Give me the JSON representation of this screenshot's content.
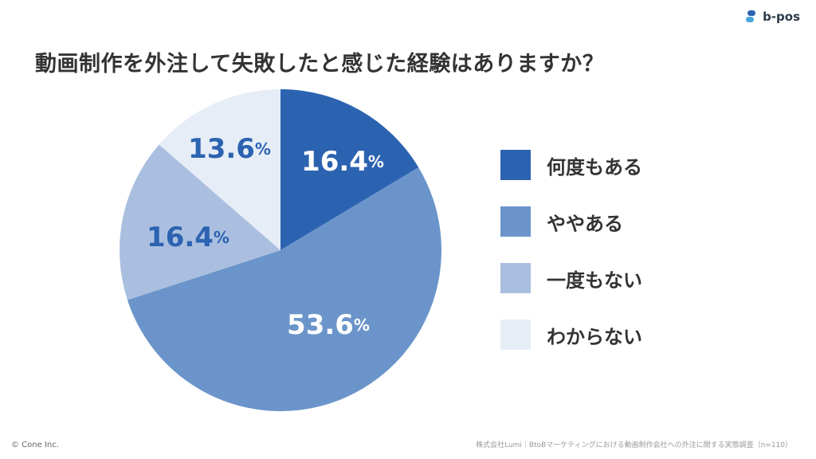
{
  "brand": {
    "name": "b-pos",
    "colors": [
      "#2c63b1",
      "#4aa3d9"
    ]
  },
  "title": "動画制作を外注して失敗したと感じた経験はありますか？",
  "chart_data": {
    "type": "pie",
    "categories": [
      "何度もある",
      "ややある",
      "一度もない",
      "わからない"
    ],
    "values": [
      16.4,
      53.6,
      16.4,
      13.6
    ],
    "labels": [
      "16.4",
      "53.6",
      "16.4",
      "13.6"
    ],
    "unit": "%",
    "colors": [
      "#2c63b1",
      "#6b95ca",
      "#aabfe0",
      "#e6edf7"
    ],
    "label_colors": [
      "#ffffff",
      "#ffffff",
      "#2c63b1",
      "#2c63b1"
    ],
    "start": "12 o'clock, clockwise",
    "legend": "right"
  },
  "footer": {
    "copyright": "© Cone Inc.",
    "source": "株式会社Lumi｜BtoBマーケティングにおける動画制作会社への外注に関する実態調査（n=110）"
  }
}
